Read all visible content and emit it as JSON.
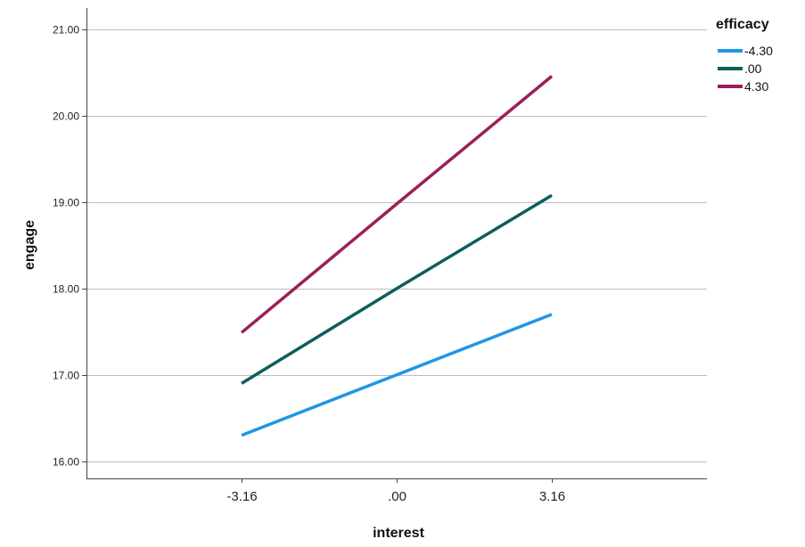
{
  "chart_data": {
    "type": "line",
    "xlabel": "interest",
    "ylabel": "engage",
    "categories": [
      "-3.16",
      ".00",
      "3.16"
    ],
    "x": [
      -3.16,
      0,
      3.16
    ],
    "xlim": [
      -6.32,
      6.32
    ],
    "ylim": [
      15.8,
      21.25
    ],
    "y_ticks": [
      16,
      17,
      18,
      19,
      20,
      21
    ],
    "y_tick_labels": [
      "16.00",
      "17.00",
      "18.00",
      "19.00",
      "20.00",
      "21.00"
    ],
    "grid": "horizontal",
    "legend": {
      "title": "efficacy",
      "placement": "top-right"
    },
    "series": [
      {
        "name": "-4.30",
        "color": "#1F96E5",
        "values": [
          16.3,
          17.0,
          17.7
        ]
      },
      {
        "name": ".00",
        "color": "#0E5E5C",
        "values": [
          16.9,
          18.0,
          19.08
        ]
      },
      {
        "name": "4.30",
        "color": "#9B1F5A",
        "values": [
          17.49,
          18.98,
          20.46
        ]
      }
    ]
  }
}
